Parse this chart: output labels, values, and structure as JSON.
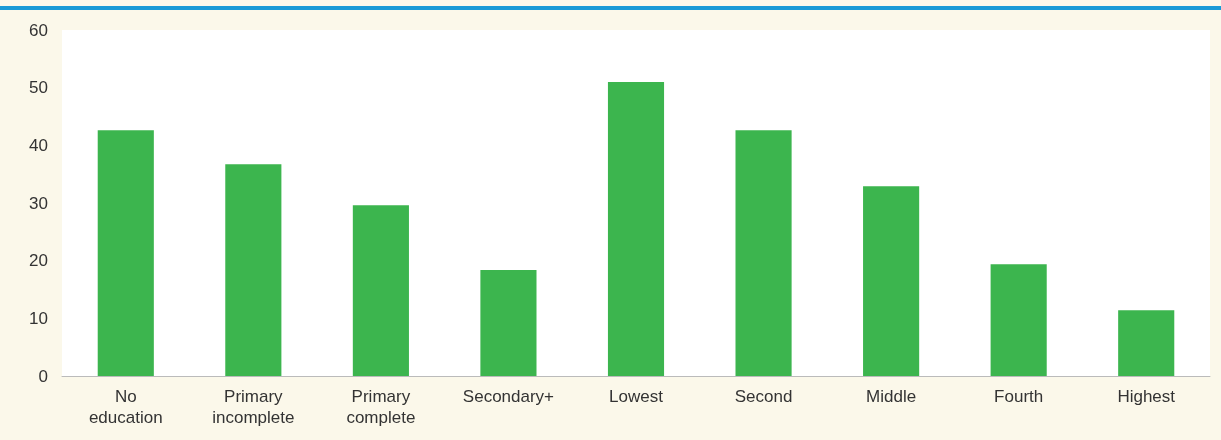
{
  "chart_data": {
    "type": "bar",
    "categories": [
      "No\neducation",
      "Primary\nincomplete",
      "Primary\ncomplete",
      "Secondary+",
      "Lowest",
      "Second",
      "Middle",
      "Fourth",
      "Highest"
    ],
    "values": [
      42.6,
      36.7,
      29.6,
      18.4,
      51.0,
      42.6,
      32.9,
      19.4,
      11.4
    ],
    "color": "#3cb54e",
    "ylim": [
      0,
      60
    ],
    "yticks": [
      0,
      10,
      20,
      30,
      40,
      50,
      60
    ],
    "grid": false
  }
}
